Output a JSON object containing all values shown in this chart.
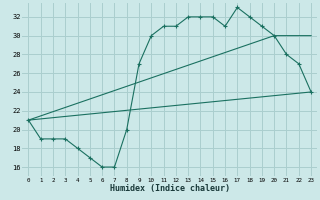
{
  "xlabel": "Humidex (Indice chaleur)",
  "bg_color": "#cce8e8",
  "grid_color": "#aacece",
  "line_color": "#1a7060",
  "xlim": [
    -0.5,
    23.5
  ],
  "ylim": [
    15,
    33.5
  ],
  "xticks": [
    0,
    1,
    2,
    3,
    4,
    5,
    6,
    7,
    8,
    9,
    10,
    11,
    12,
    13,
    14,
    15,
    16,
    17,
    18,
    19,
    20,
    21,
    22,
    23
  ],
  "yticks": [
    16,
    18,
    20,
    22,
    24,
    26,
    28,
    30,
    32
  ],
  "line1_x": [
    0,
    1,
    2,
    3,
    4,
    5,
    6,
    7,
    8,
    9,
    10,
    11,
    12,
    13,
    14,
    15,
    16,
    17,
    18,
    19,
    20,
    21,
    22,
    23
  ],
  "line1_y": [
    21,
    19,
    19,
    19,
    18,
    17,
    16,
    16,
    20,
    27,
    30,
    31,
    31,
    32,
    32,
    32,
    31,
    33,
    32,
    31,
    30,
    28,
    27,
    24
  ],
  "line2_x": [
    0,
    23
  ],
  "line2_y": [
    21,
    24
  ],
  "line3_x": [
    0,
    20,
    23
  ],
  "line3_y": [
    21,
    30,
    30
  ]
}
